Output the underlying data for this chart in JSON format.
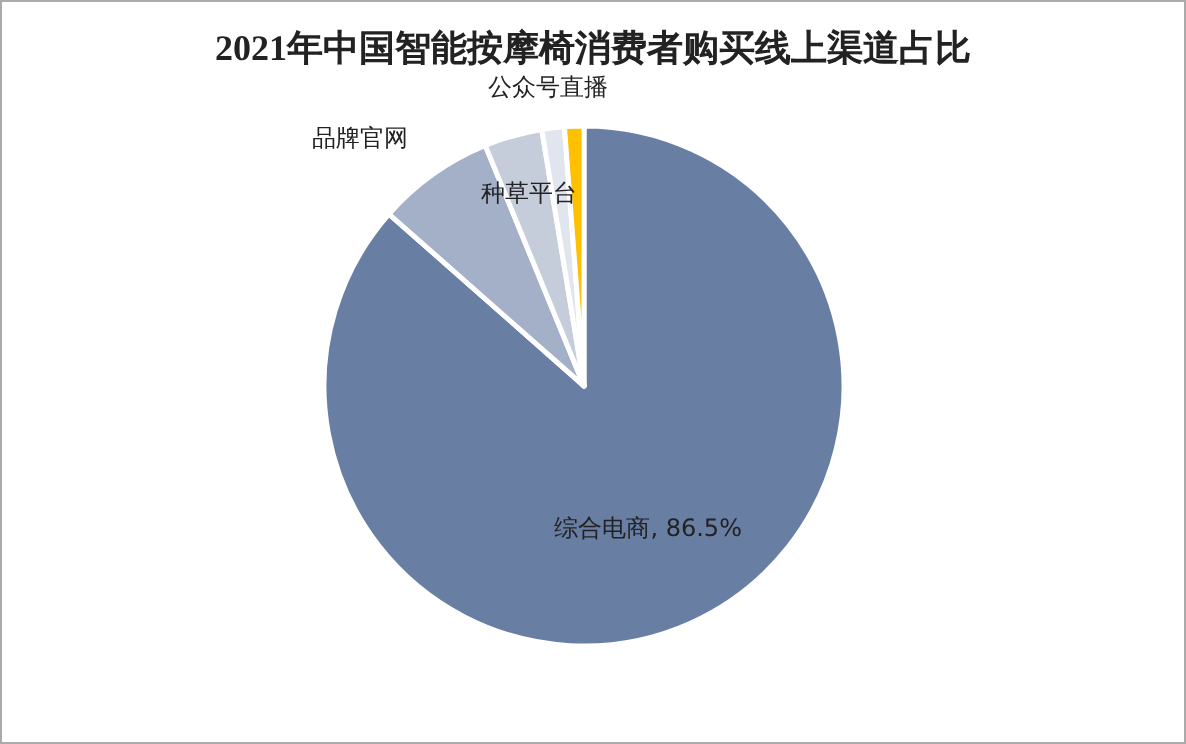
{
  "chart_data": {
    "type": "pie",
    "title": "2021年中国智能按摩椅消费者购买线上渠道占比",
    "categories": [
      "综合电商",
      "品牌官网",
      "种草平台",
      "公众号直播",
      null
    ],
    "values": [
      86.5,
      7.3,
      3.6,
      1.4,
      1.2
    ],
    "value_labels": [
      "86.5%",
      null,
      null,
      null,
      null
    ],
    "colors": [
      "#687ea3",
      "#a3b0c8",
      "#c5cddb",
      "#e1e6ee",
      "#ffc000"
    ],
    "legend": false
  }
}
